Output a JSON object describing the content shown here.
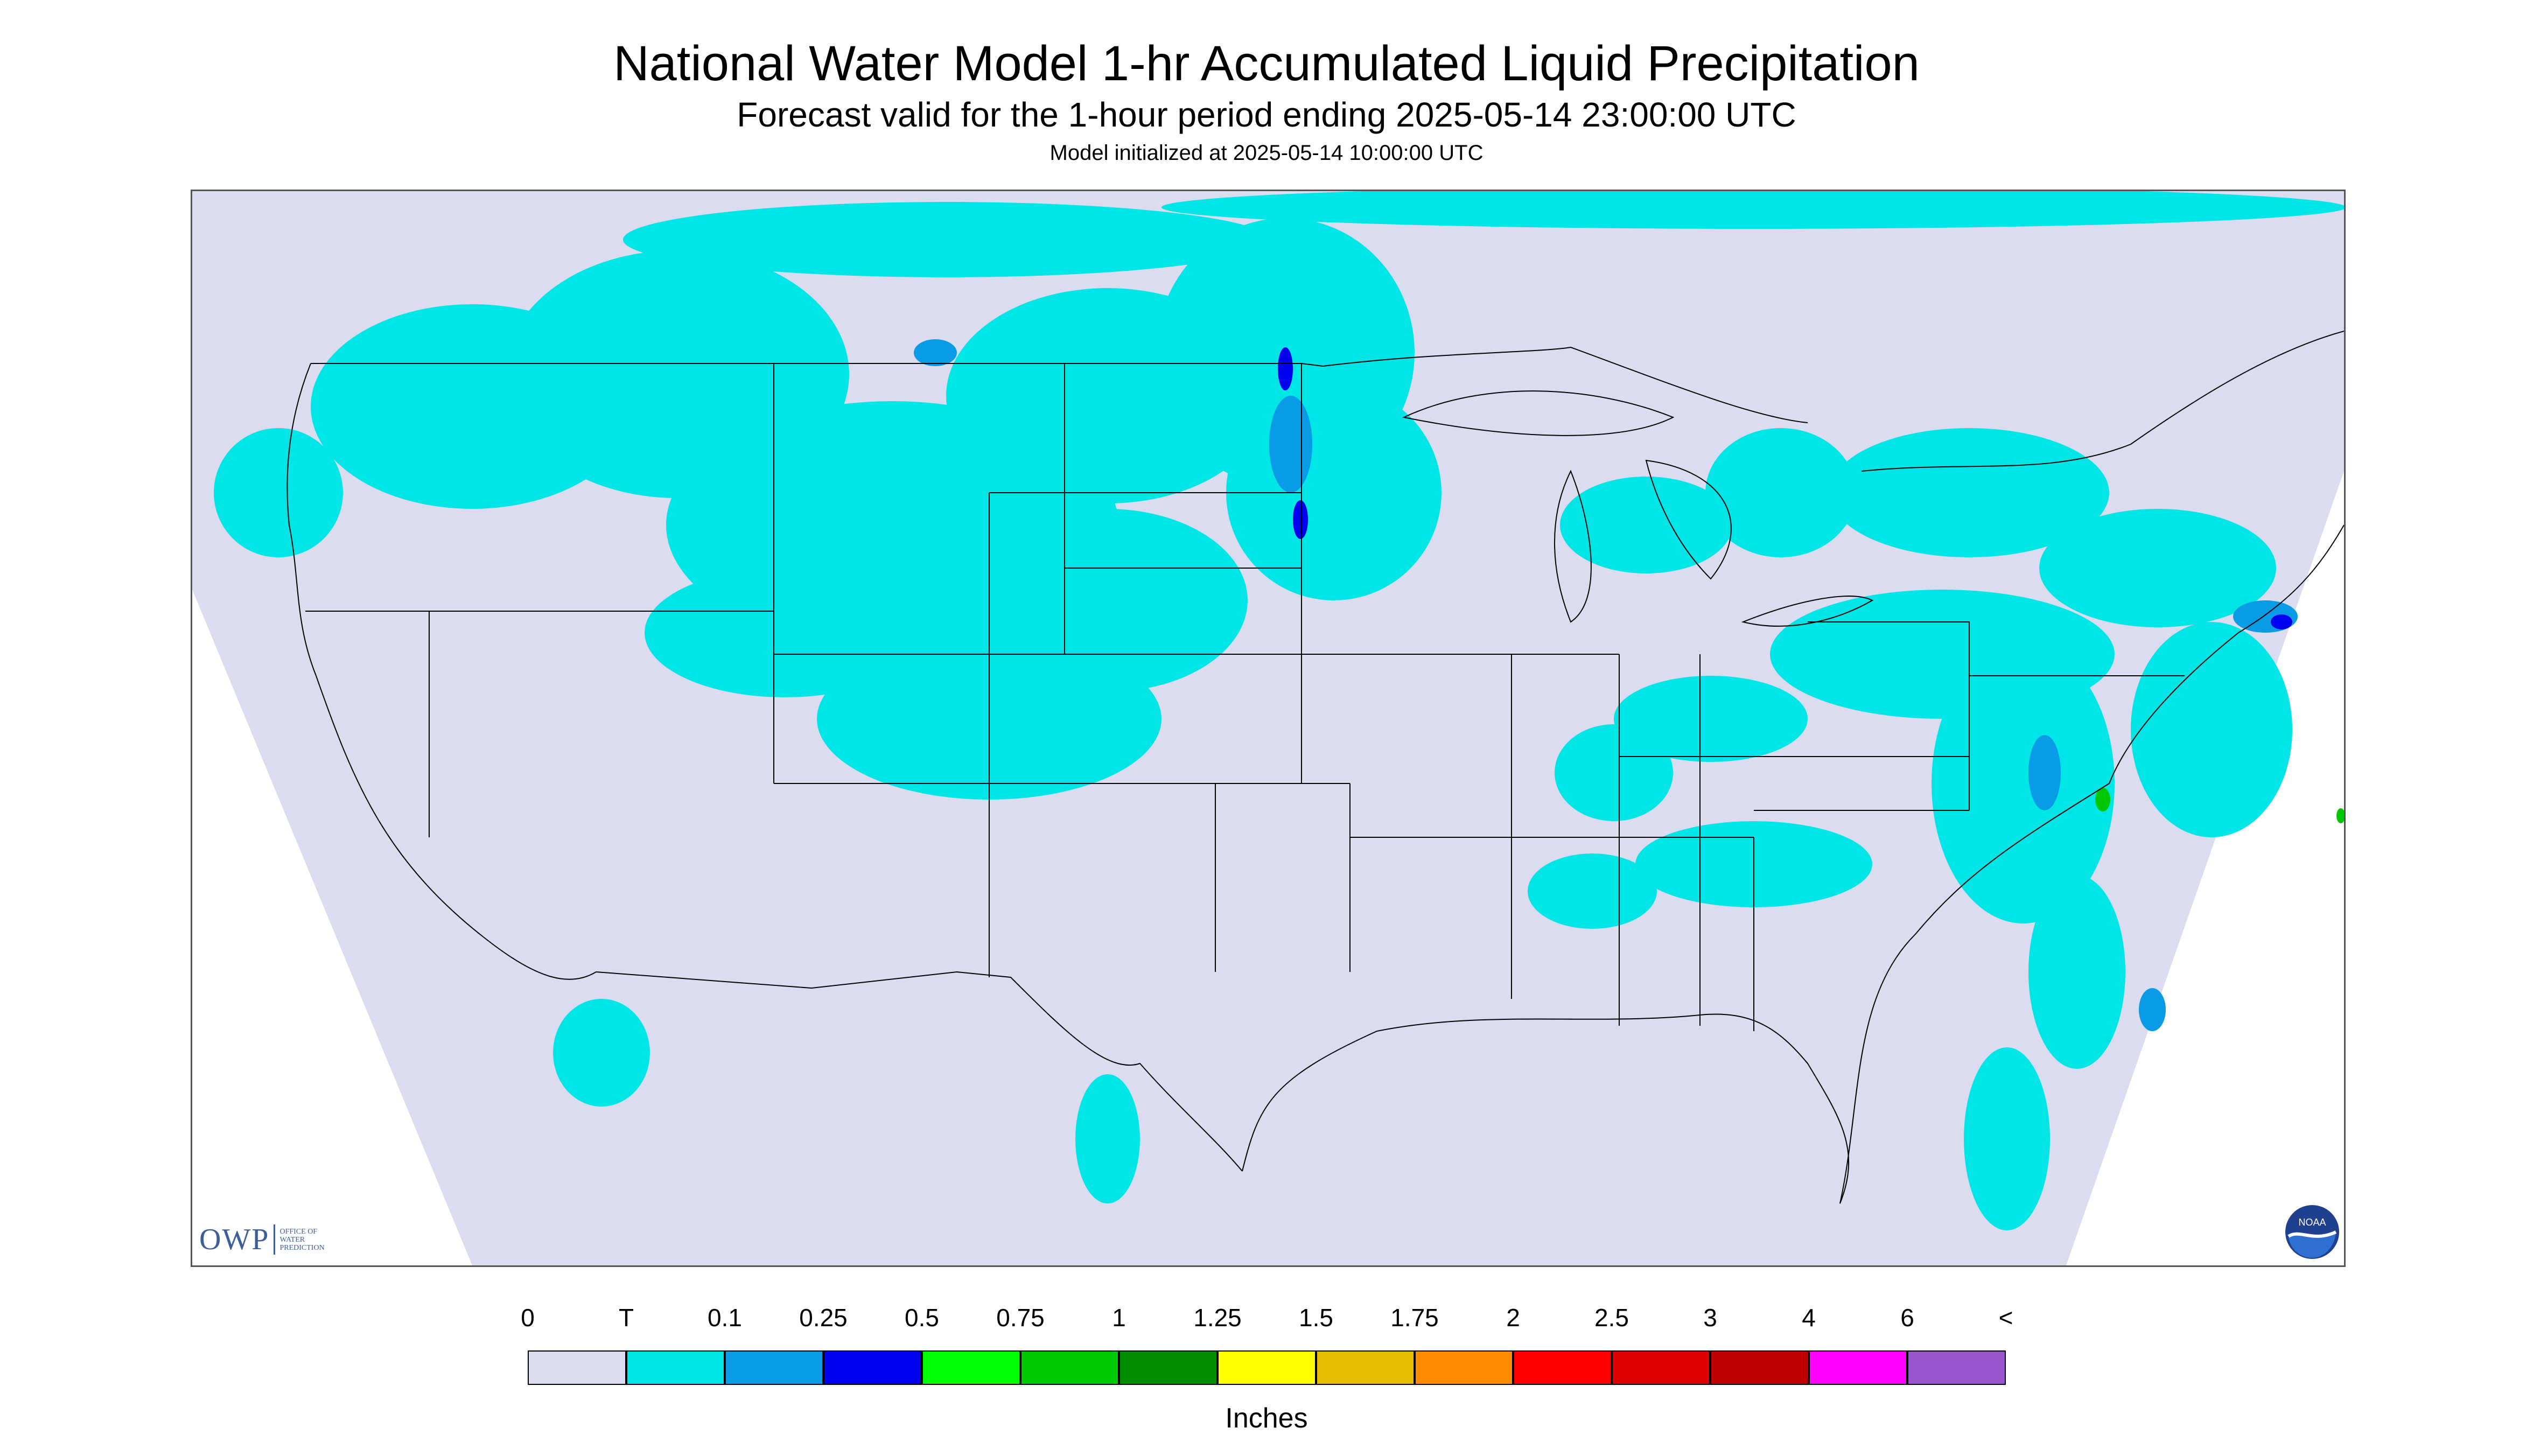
{
  "title": "National Water Model 1-hr Accumulated Liquid Precipitation",
  "subtitle": "Forecast valid for the 1-hour period ending 2025-05-14 23:00:00 UTC",
  "init_line": "Model initialized at 2025-05-14 10:00:00 UTC",
  "logos": {
    "owp": "OWP",
    "owp_sub": [
      "OFFICE OF",
      "WATER",
      "PREDICTION"
    ],
    "noaa": "NOAA"
  },
  "legend": {
    "labels": [
      "0",
      "T",
      "0.1",
      "0.25",
      "0.5",
      "0.75",
      "1",
      "1.25",
      "1.5",
      "1.75",
      "2",
      "2.5",
      "3",
      "4",
      "6",
      "<"
    ],
    "colors": [
      "#dcdcf0",
      "#00e6e6",
      "#0a9be6",
      "#0000ee",
      "#00ff00",
      "#00c800",
      "#008c00",
      "#ffff00",
      "#e6be00",
      "#ff8c00",
      "#ff0000",
      "#dc0000",
      "#be0000",
      "#ff00ff",
      "#9955cc"
    ],
    "units": "Inches"
  },
  "map_colors": {
    "domain_fill": "#dcdcf0",
    "trace": "#00e6e6",
    "light": "#0a9be6",
    "moderate": "#0000ee",
    "heavy": "#00c800",
    "boundary": "#000000"
  }
}
